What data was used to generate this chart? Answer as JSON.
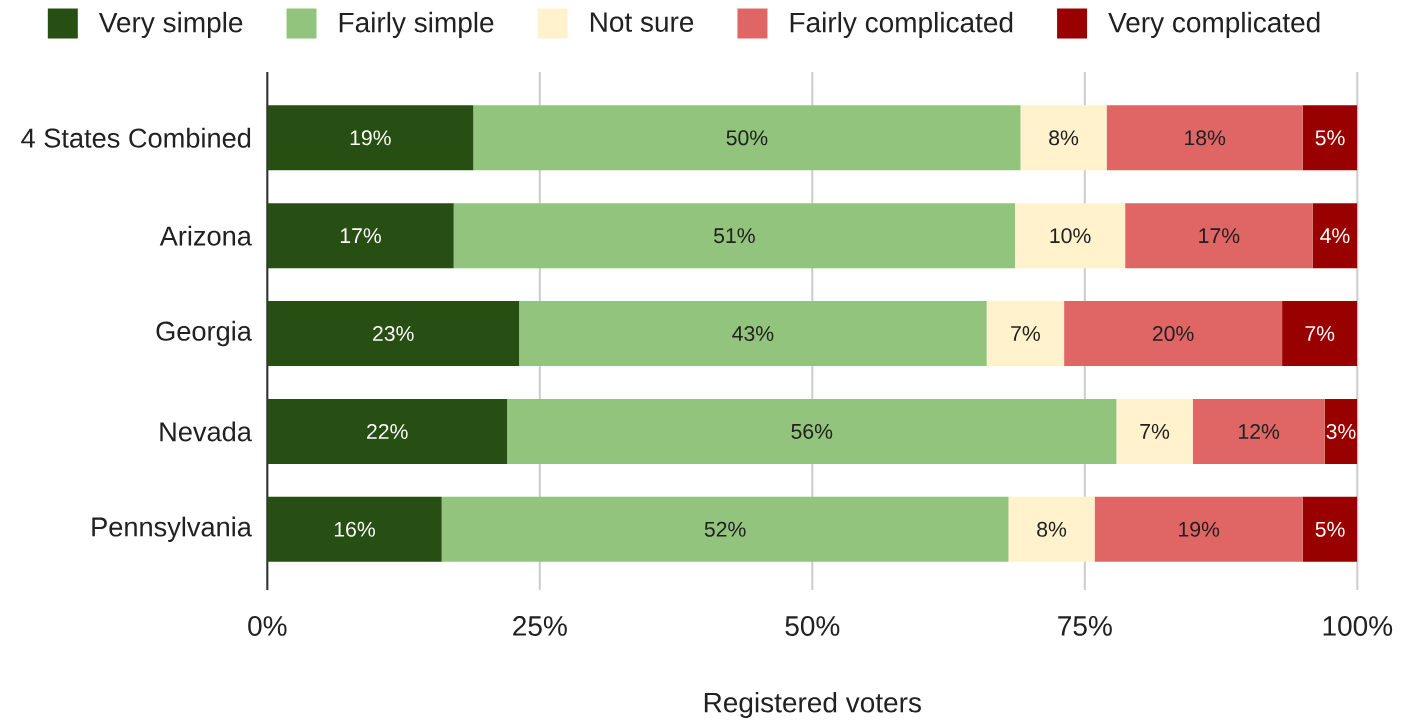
{
  "chart_data": {
    "type": "bar",
    "orientation": "horizontal",
    "stacked": true,
    "categories": [
      "4 States Combined",
      "Arizona",
      "Georgia",
      "Nevada",
      "Pennsylvania"
    ],
    "series": [
      {
        "name": "Very simple",
        "color": "#274e13",
        "values": [
          18.9,
          17.1,
          23.1,
          22.0,
          16.0
        ],
        "value_labels": [
          "19%",
          "17%",
          "23%",
          "22%",
          "16%"
        ]
      },
      {
        "name": "Fairly simple",
        "color": "#93c47d",
        "values": [
          50.2,
          51.5,
          42.9,
          55.9,
          52.0
        ],
        "value_labels": [
          "50%",
          "51%",
          "43%",
          "56%",
          "52%"
        ]
      },
      {
        "name": "Not sure",
        "color": "#fff2cc",
        "values": [
          7.9,
          10.1,
          7.1,
          7.0,
          7.9
        ],
        "value_labels": [
          "8%",
          "10%",
          "7%",
          "7%",
          "8%"
        ]
      },
      {
        "name": "Fairly complicated",
        "color": "#e06666",
        "values": [
          18.0,
          17.2,
          20.0,
          12.1,
          19.1
        ],
        "value_labels": [
          "18%",
          "17%",
          "20%",
          "12%",
          "19%"
        ]
      },
      {
        "name": "Very complicated",
        "color": "#990000",
        "values": [
          5.0,
          4.1,
          6.9,
          3.0,
          5.0
        ],
        "value_labels": [
          "5%",
          "4%",
          "7%",
          "3%",
          "5%"
        ]
      }
    ],
    "xlabel": "Registered voters",
    "xlim": [
      0,
      100
    ],
    "xticks": [
      {
        "value": 0,
        "label": "0%"
      },
      {
        "value": 25,
        "label": "25%"
      },
      {
        "value": 50,
        "label": "50%"
      },
      {
        "value": 75,
        "label": "75%"
      },
      {
        "value": 100,
        "label": "100%"
      }
    ],
    "grid": "x",
    "legend": "top"
  }
}
